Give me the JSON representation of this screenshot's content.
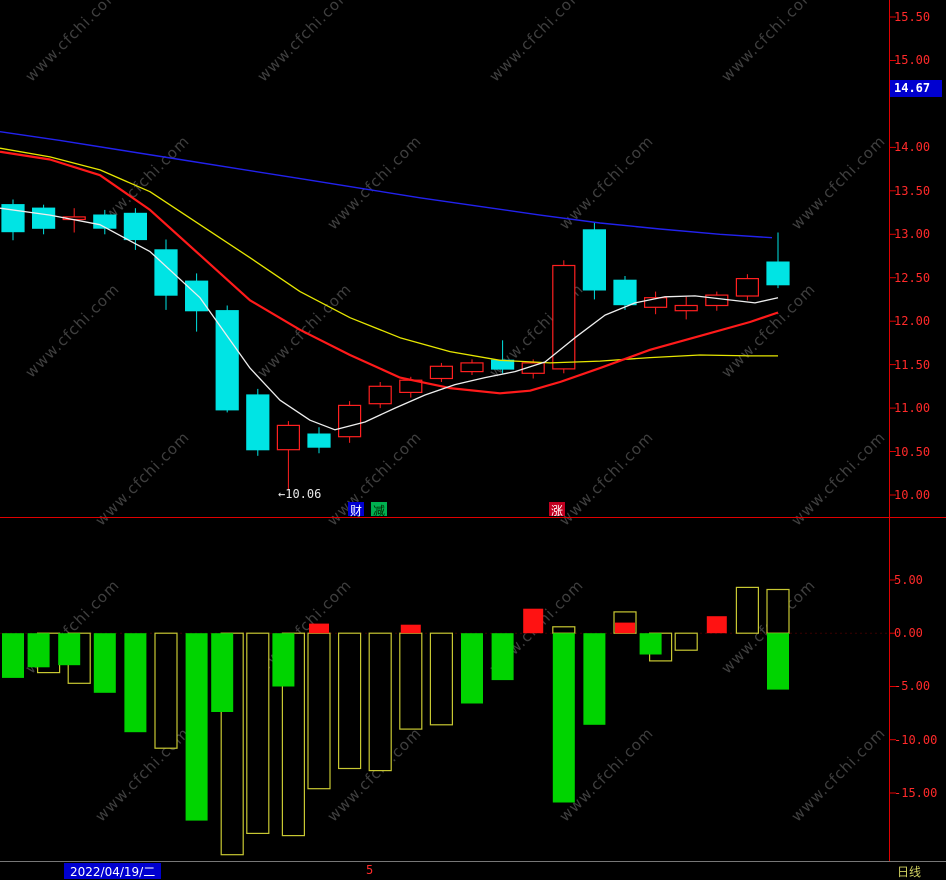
{
  "watermark": {
    "text": "www.cfchi.com"
  },
  "colors": {
    "background": "#000000",
    "axis_text": "#ff2a2a",
    "up": "#ff2020",
    "down": "#00e4e4",
    "ma_white": "#eeeeee",
    "ma_yellow": "#e6e600",
    "ma_red": "#ff1a1a",
    "ma_blue": "#2222ee",
    "bar_green": "#00d400",
    "bar_outline": "#c8c832",
    "bar_red": "#ff1212",
    "separator": "#e00000",
    "badge_bg": "#0000d0"
  },
  "top_panel": {
    "badge": {
      "text": "14.67"
    },
    "annotation": "←10.06",
    "axis_labels": [
      "15.50",
      "15.00",
      "14.00",
      "13.50",
      "13.00",
      "12.50",
      "12.00",
      "11.50",
      "11.00",
      "10.50",
      "10.00"
    ],
    "tags": [
      {
        "text": "财",
        "bg": "#0000d0",
        "fg": "#ffffff"
      },
      {
        "text": "减",
        "bg": "#00b050",
        "fg": "#002800"
      },
      {
        "text": "涨",
        "bg": "#c00020",
        "fg": "#ffffff"
      }
    ]
  },
  "bottom_panel": {
    "axis_labels": [
      "5.00",
      "0.00",
      "-5.00",
      "-10.00",
      "-15.00"
    ]
  },
  "status_bar": {
    "date": "2022/04/19/二",
    "center_value": "5",
    "period": "日线"
  },
  "chart_data": [
    {
      "type": "candlestick",
      "title": "",
      "ylim": [
        10.0,
        15.5
      ],
      "grid": false,
      "candles": [
        {
          "o": 13.34,
          "h": 13.4,
          "l": 12.93,
          "c": 13.03
        },
        {
          "o": 13.3,
          "h": 13.34,
          "l": 13.0,
          "c": 13.07
        },
        {
          "o": 13.17,
          "h": 13.3,
          "l": 13.02,
          "c": 13.2
        },
        {
          "o": 13.22,
          "h": 13.28,
          "l": 13.0,
          "c": 13.07
        },
        {
          "o": 13.24,
          "h": 13.3,
          "l": 12.82,
          "c": 12.94
        },
        {
          "o": 12.82,
          "h": 12.94,
          "l": 12.13,
          "c": 12.3
        },
        {
          "o": 12.46,
          "h": 12.55,
          "l": 11.88,
          "c": 12.12
        },
        {
          "o": 12.12,
          "h": 12.18,
          "l": 10.95,
          "c": 10.98
        },
        {
          "o": 11.15,
          "h": 11.22,
          "l": 10.45,
          "c": 10.52
        },
        {
          "o": 10.52,
          "h": 10.85,
          "l": 10.06,
          "c": 10.8
        },
        {
          "o": 10.7,
          "h": 10.78,
          "l": 10.48,
          "c": 10.55
        },
        {
          "o": 10.67,
          "h": 11.08,
          "l": 10.6,
          "c": 11.03
        },
        {
          "o": 11.05,
          "h": 11.3,
          "l": 11.0,
          "c": 11.25
        },
        {
          "o": 11.18,
          "h": 11.36,
          "l": 11.12,
          "c": 11.32
        },
        {
          "o": 11.34,
          "h": 11.52,
          "l": 11.3,
          "c": 11.48
        },
        {
          "o": 11.42,
          "h": 11.56,
          "l": 11.38,
          "c": 11.52
        },
        {
          "o": 11.55,
          "h": 11.78,
          "l": 11.4,
          "c": 11.45
        },
        {
          "o": 11.4,
          "h": 11.56,
          "l": 11.34,
          "c": 11.52
        },
        {
          "o": 11.45,
          "h": 12.7,
          "l": 11.4,
          "c": 12.64
        },
        {
          "o": 13.05,
          "h": 13.14,
          "l": 12.25,
          "c": 12.36
        },
        {
          "o": 12.47,
          "h": 12.52,
          "l": 12.13,
          "c": 12.19
        },
        {
          "o": 12.16,
          "h": 12.34,
          "l": 12.08,
          "c": 12.27
        },
        {
          "o": 12.12,
          "h": 12.28,
          "l": 12.02,
          "c": 12.18
        },
        {
          "o": 12.18,
          "h": 12.34,
          "l": 12.12,
          "c": 12.3
        },
        {
          "o": 12.29,
          "h": 12.54,
          "l": 12.24,
          "c": 12.49
        },
        {
          "o": 12.68,
          "h": 13.02,
          "l": 12.38,
          "c": 12.42
        }
      ],
      "ma_series": [
        {
          "name": "ma-blue",
          "color_key": "ma_blue",
          "width": 1.4,
          "points": [
            [
              0,
              14.18
            ],
            [
              60,
              14.08
            ],
            [
              120,
              13.97
            ],
            [
              180,
              13.86
            ],
            [
              240,
              13.75
            ],
            [
              300,
              13.64
            ],
            [
              360,
              13.53
            ],
            [
              420,
              13.42
            ],
            [
              480,
              13.32
            ],
            [
              540,
              13.22
            ],
            [
              600,
              13.13
            ],
            [
              660,
              13.06
            ],
            [
              720,
              13.0
            ],
            [
              772,
              12.96
            ]
          ]
        },
        {
          "name": "ma-yellow",
          "color_key": "ma_yellow",
          "width": 1.3,
          "points": [
            [
              0,
              13.99
            ],
            [
              50,
              13.89
            ],
            [
              100,
              13.74
            ],
            [
              150,
              13.49
            ],
            [
              200,
              13.11
            ],
            [
              250,
              12.73
            ],
            [
              300,
              12.34
            ],
            [
              350,
              12.04
            ],
            [
              400,
              11.81
            ],
            [
              450,
              11.65
            ],
            [
              500,
              11.55
            ],
            [
              550,
              11.52
            ],
            [
              600,
              11.54
            ],
            [
              650,
              11.58
            ],
            [
              700,
              11.61
            ],
            [
              750,
              11.6
            ],
            [
              778,
              11.6
            ]
          ]
        },
        {
          "name": "ma-red",
          "color_key": "ma_red",
          "width": 2.2,
          "points": [
            [
              0,
              13.95
            ],
            [
              50,
              13.86
            ],
            [
              100,
              13.68
            ],
            [
              150,
              13.28
            ],
            [
              200,
              12.76
            ],
            [
              250,
              12.24
            ],
            [
              300,
              11.9
            ],
            [
              350,
              11.61
            ],
            [
              400,
              11.35
            ],
            [
              450,
              11.23
            ],
            [
              500,
              11.17
            ],
            [
              530,
              11.2
            ],
            [
              560,
              11.3
            ],
            [
              600,
              11.46
            ],
            [
              650,
              11.67
            ],
            [
              700,
              11.83
            ],
            [
              750,
              11.99
            ],
            [
              778,
              12.1
            ]
          ]
        },
        {
          "name": "ma-white",
          "color_key": "ma_white",
          "width": 1.3,
          "points": [
            [
              0,
              13.3
            ],
            [
              50,
              13.22
            ],
            [
              100,
              13.11
            ],
            [
              150,
              12.8
            ],
            [
              200,
              12.27
            ],
            [
              250,
              11.46
            ],
            [
              280,
              11.09
            ],
            [
              310,
              10.86
            ],
            [
              335,
              10.75
            ],
            [
              365,
              10.84
            ],
            [
              395,
              11.0
            ],
            [
              425,
              11.15
            ],
            [
              455,
              11.27
            ],
            [
              485,
              11.35
            ],
            [
              515,
              11.42
            ],
            [
              545,
              11.53
            ],
            [
              575,
              11.81
            ],
            [
              605,
              12.07
            ],
            [
              635,
              12.21
            ],
            [
              665,
              12.28
            ],
            [
              695,
              12.29
            ],
            [
              725,
              12.25
            ],
            [
              755,
              12.21
            ],
            [
              778,
              12.27
            ]
          ]
        }
      ]
    },
    {
      "type": "bar",
      "title": "",
      "ylim": [
        -21,
        6
      ],
      "bars": [
        {
          "green": -4.2
        },
        {
          "green": -3.2,
          "outline": -3.7
        },
        {
          "green": -3.0,
          "outline": -4.7
        },
        {
          "green": -5.6
        },
        {
          "green": -9.3
        },
        {
          "outline": -10.8
        },
        {
          "green": -17.6
        },
        {
          "green": -7.4,
          "outline": -20.8
        },
        {
          "outline": -18.8
        },
        {
          "green": -5.0,
          "outline": -19.0
        },
        {
          "red": 0.9,
          "outline": -14.6
        },
        {
          "outline": -12.7
        },
        {
          "outline": -12.9
        },
        {
          "red": 0.8,
          "outline": -9.0
        },
        {
          "outline": -8.6
        },
        {
          "green": -6.6
        },
        {
          "green": -4.4
        },
        {
          "red": 2.3
        },
        {
          "outline": 0.6,
          "green": -15.9
        },
        {
          "green": -8.6
        },
        {
          "outline": 2.0,
          "red": 1.0
        },
        {
          "green": -2.0,
          "outline": -2.6
        },
        {
          "outline": -1.6
        },
        {
          "red": 1.6
        },
        {
          "outline": 4.3
        },
        {
          "outline": 4.1,
          "green": -5.3
        }
      ]
    }
  ]
}
